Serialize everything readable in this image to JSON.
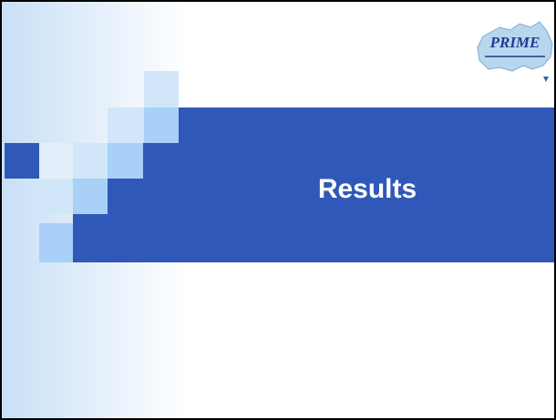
{
  "slide": {
    "title": "Results",
    "logo": {
      "text": "PRIME"
    }
  }
}
